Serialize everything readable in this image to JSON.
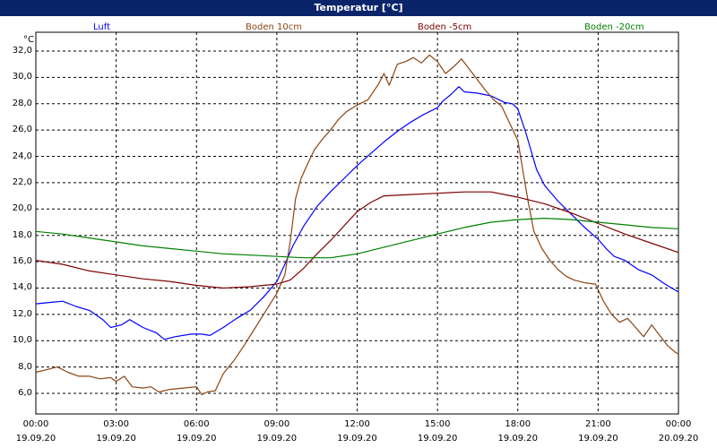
{
  "window": {
    "title": "Temperatur [°C]"
  },
  "chart_data": {
    "type": "line",
    "title": "Temperatur [°C]",
    "ylabel": "°C",
    "ylim": [
      4.0,
      33.5
    ],
    "yticks": [
      "6,0",
      "8,0",
      "10,0",
      "12,0",
      "14,0",
      "16,0",
      "18,0",
      "20,0",
      "22,0",
      "24,0",
      "26,0",
      "28,0",
      "30,0",
      "32,0"
    ],
    "xlim_hours": [
      0,
      24
    ],
    "xticks": [
      {
        "time": "00:00",
        "date": "19.09.20"
      },
      {
        "time": "03:00",
        "date": "19.09.20"
      },
      {
        "time": "06:00",
        "date": "19.09.20"
      },
      {
        "time": "09:00",
        "date": "19.09.20"
      },
      {
        "time": "12:00",
        "date": "19.09.20"
      },
      {
        "time": "15:00",
        "date": "19.09.20"
      },
      {
        "time": "18:00",
        "date": "19.09.20"
      },
      {
        "time": "21:00",
        "date": "19.09.20"
      },
      {
        "time": "00:00",
        "date": "20.09.20"
      }
    ],
    "grid": true,
    "legend_position": "top",
    "series": [
      {
        "name": "Luft",
        "color": "#0000ff",
        "points": [
          [
            0,
            12.8
          ],
          [
            0.5,
            12.9
          ],
          [
            1,
            13.0
          ],
          [
            1.5,
            12.6
          ],
          [
            2,
            12.3
          ],
          [
            2.5,
            11.6
          ],
          [
            2.8,
            11.0
          ],
          [
            3.2,
            11.2
          ],
          [
            3.5,
            11.6
          ],
          [
            4,
            11.0
          ],
          [
            4.5,
            10.6
          ],
          [
            4.8,
            10.1
          ],
          [
            5.2,
            10.3
          ],
          [
            5.8,
            10.5
          ],
          [
            6.2,
            10.5
          ],
          [
            6.5,
            10.4
          ],
          [
            7,
            11.0
          ],
          [
            7.5,
            11.7
          ],
          [
            8,
            12.3
          ],
          [
            8.5,
            13.3
          ],
          [
            9,
            14.5
          ],
          [
            9.3,
            15.8
          ],
          [
            9.6,
            17.2
          ],
          [
            10,
            18.7
          ],
          [
            10.5,
            20.2
          ],
          [
            11,
            21.3
          ],
          [
            11.5,
            22.3
          ],
          [
            12,
            23.3
          ],
          [
            12.5,
            24.2
          ],
          [
            13,
            25.1
          ],
          [
            13.5,
            25.9
          ],
          [
            14,
            26.6
          ],
          [
            14.5,
            27.2
          ],
          [
            15,
            27.7
          ],
          [
            15.2,
            28.2
          ],
          [
            15.5,
            28.7
          ],
          [
            15.8,
            29.3
          ],
          [
            16,
            28.9
          ],
          [
            16.5,
            28.8
          ],
          [
            17,
            28.6
          ],
          [
            17.5,
            28.1
          ],
          [
            17.8,
            28.0
          ],
          [
            18,
            27.6
          ],
          [
            18.3,
            25.8
          ],
          [
            18.7,
            23.0
          ],
          [
            19,
            21.8
          ],
          [
            19.5,
            20.6
          ],
          [
            20,
            19.6
          ],
          [
            20.5,
            18.6
          ],
          [
            21,
            17.7
          ],
          [
            21.3,
            17.0
          ],
          [
            21.6,
            16.4
          ],
          [
            22,
            16.1
          ],
          [
            22.5,
            15.4
          ],
          [
            23,
            15.0
          ],
          [
            23.5,
            14.3
          ],
          [
            24,
            13.7
          ]
        ]
      },
      {
        "name": "Boden 10cm",
        "color": "#8b4513",
        "points": [
          [
            0,
            7.6
          ],
          [
            0.4,
            7.8
          ],
          [
            0.8,
            8.0
          ],
          [
            1.2,
            7.6
          ],
          [
            1.6,
            7.3
          ],
          [
            2,
            7.3
          ],
          [
            2.4,
            7.1
          ],
          [
            2.8,
            7.2
          ],
          [
            3,
            6.9
          ],
          [
            3.3,
            7.3
          ],
          [
            3.6,
            6.5
          ],
          [
            4,
            6.4
          ],
          [
            4.3,
            6.5
          ],
          [
            4.6,
            6.1
          ],
          [
            5,
            6.3
          ],
          [
            5.5,
            6.4
          ],
          [
            6,
            6.5
          ],
          [
            6.2,
            5.9
          ],
          [
            6.4,
            6.1
          ],
          [
            6.7,
            6.2
          ],
          [
            7,
            7.5
          ],
          [
            7.4,
            8.5
          ],
          [
            7.8,
            9.7
          ],
          [
            8.2,
            11.0
          ],
          [
            8.6,
            12.3
          ],
          [
            9,
            13.6
          ],
          [
            9.3,
            15.0
          ],
          [
            9.5,
            17.5
          ],
          [
            9.7,
            20.8
          ],
          [
            9.9,
            22.3
          ],
          [
            10.1,
            23.2
          ],
          [
            10.4,
            24.5
          ],
          [
            10.7,
            25.3
          ],
          [
            11,
            26.0
          ],
          [
            11.3,
            26.8
          ],
          [
            11.6,
            27.4
          ],
          [
            12,
            27.9
          ],
          [
            12.4,
            28.3
          ],
          [
            12.8,
            29.5
          ],
          [
            13,
            30.3
          ],
          [
            13.2,
            29.4
          ],
          [
            13.5,
            31.0
          ],
          [
            13.8,
            31.2
          ],
          [
            14.1,
            31.5
          ],
          [
            14.4,
            31.1
          ],
          [
            14.7,
            31.7
          ],
          [
            15,
            31.2
          ],
          [
            15.3,
            30.3
          ],
          [
            15.6,
            30.8
          ],
          [
            15.9,
            31.4
          ],
          [
            16.2,
            30.6
          ],
          [
            16.5,
            29.8
          ],
          [
            16.8,
            29.0
          ],
          [
            17.1,
            28.3
          ],
          [
            17.4,
            27.8
          ],
          [
            17.7,
            26.5
          ],
          [
            18,
            25.2
          ],
          [
            18.2,
            22.8
          ],
          [
            18.4,
            20.4
          ],
          [
            18.6,
            18.3
          ],
          [
            18.9,
            17.0
          ],
          [
            19.2,
            16.1
          ],
          [
            19.5,
            15.4
          ],
          [
            19.8,
            14.9
          ],
          [
            20.1,
            14.6
          ],
          [
            20.5,
            14.4
          ],
          [
            20.9,
            14.3
          ],
          [
            21.2,
            13.0
          ],
          [
            21.5,
            12.0
          ],
          [
            21.8,
            11.4
          ],
          [
            22.1,
            11.7
          ],
          [
            22.4,
            11.0
          ],
          [
            22.7,
            10.3
          ],
          [
            23,
            11.2
          ],
          [
            23.3,
            10.4
          ],
          [
            23.6,
            9.6
          ],
          [
            23.9,
            9.1
          ],
          [
            24,
            9.0
          ]
        ]
      },
      {
        "name": "Boden -5cm",
        "color": "#800000",
        "points": [
          [
            0,
            16.1
          ],
          [
            1,
            15.8
          ],
          [
            2,
            15.3
          ],
          [
            3,
            15.0
          ],
          [
            4,
            14.7
          ],
          [
            5,
            14.5
          ],
          [
            6,
            14.2
          ],
          [
            7,
            14.0
          ],
          [
            8,
            14.1
          ],
          [
            8.5,
            14.2
          ],
          [
            9,
            14.3
          ],
          [
            9.5,
            14.6
          ],
          [
            10,
            15.5
          ],
          [
            10.5,
            16.6
          ],
          [
            11,
            17.6
          ],
          [
            11.5,
            18.7
          ],
          [
            12,
            19.8
          ],
          [
            12.5,
            20.5
          ],
          [
            13,
            21.0
          ],
          [
            14,
            21.1
          ],
          [
            15,
            21.2
          ],
          [
            16,
            21.3
          ],
          [
            17,
            21.3
          ],
          [
            17.5,
            21.1
          ],
          [
            18,
            20.9
          ],
          [
            19,
            20.4
          ],
          [
            20,
            19.7
          ],
          [
            21,
            18.9
          ],
          [
            22,
            18.1
          ],
          [
            23,
            17.4
          ],
          [
            24,
            16.7
          ]
        ]
      },
      {
        "name": "Boden -20cm",
        "color": "#008000",
        "points": [
          [
            0,
            18.3
          ],
          [
            1,
            18.1
          ],
          [
            2,
            17.8
          ],
          [
            3,
            17.5
          ],
          [
            4,
            17.2
          ],
          [
            5,
            17.0
          ],
          [
            6,
            16.8
          ],
          [
            7,
            16.6
          ],
          [
            8,
            16.5
          ],
          [
            9,
            16.4
          ],
          [
            10,
            16.3
          ],
          [
            11,
            16.3
          ],
          [
            12,
            16.6
          ],
          [
            13,
            17.1
          ],
          [
            14,
            17.6
          ],
          [
            15,
            18.1
          ],
          [
            16,
            18.6
          ],
          [
            17,
            19.0
          ],
          [
            18,
            19.2
          ],
          [
            19,
            19.3
          ],
          [
            20,
            19.2
          ],
          [
            21,
            19.0
          ],
          [
            22,
            18.8
          ],
          [
            23,
            18.6
          ],
          [
            24,
            18.5
          ]
        ]
      }
    ]
  }
}
